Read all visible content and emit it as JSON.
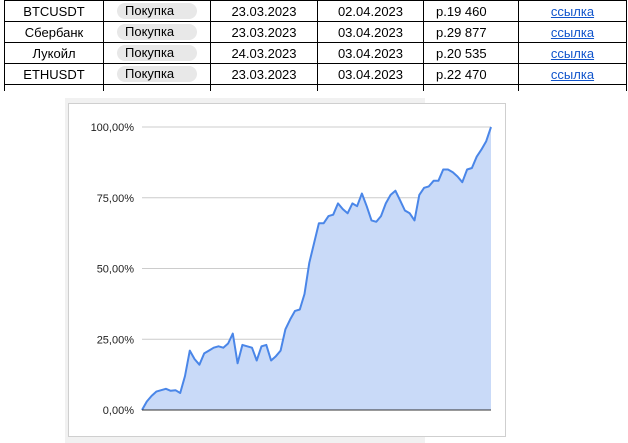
{
  "table": {
    "rows": [
      {
        "ticker": "BTCUSDT",
        "action": "Покупка",
        "open_date": "23.03.2023",
        "close_date": "02.04.2023",
        "price": "р.19 460",
        "link": "ссылка"
      },
      {
        "ticker": "Сбербанк",
        "action": "Покупка",
        "open_date": "23.03.2023",
        "close_date": "03.04.2023",
        "price": "р.29 877",
        "link": "ссылка"
      },
      {
        "ticker": "Лукойл",
        "action": "Покупка",
        "open_date": "24.03.2023",
        "close_date": "03.04.2023",
        "price": "р.20 535",
        "link": "ссылка"
      },
      {
        "ticker": "ETHUSDT",
        "action": "Покупка",
        "open_date": "23.03.2023",
        "close_date": "03.04.2023",
        "price": "р.22 470",
        "link": "ссылка"
      }
    ]
  },
  "chart_data": {
    "type": "area",
    "title": "",
    "xlabel": "",
    "ylabel": "",
    "ylim": [
      0,
      100
    ],
    "yticks": [
      "0,00%",
      "25,00%",
      "50,00%",
      "75,00%",
      "100,00%"
    ],
    "grid": true,
    "legend": "none",
    "line_color": "#4a86e8",
    "fill_color": "#c9daf8",
    "series": [
      {
        "values": [
          0,
          3,
          5,
          6.5,
          7,
          7.5,
          6.8,
          7,
          6,
          12,
          21,
          18,
          16,
          20,
          21,
          22,
          22.5,
          22,
          23.5,
          27,
          16.5,
          23,
          22.5,
          22,
          17.5,
          22.5,
          23,
          17.5,
          19,
          21,
          28.5,
          32,
          35,
          35.5,
          41,
          52,
          59,
          66,
          66,
          68.5,
          69,
          73,
          71,
          69.5,
          73,
          72,
          76.5,
          72,
          67,
          66.5,
          68.5,
          73,
          76,
          77.5,
          74,
          70.5,
          69.5,
          67,
          76,
          78.5,
          79,
          81,
          81,
          85,
          85,
          84,
          82.5,
          80.5,
          85,
          85.5,
          89.5,
          92,
          95,
          100
        ]
      }
    ]
  }
}
